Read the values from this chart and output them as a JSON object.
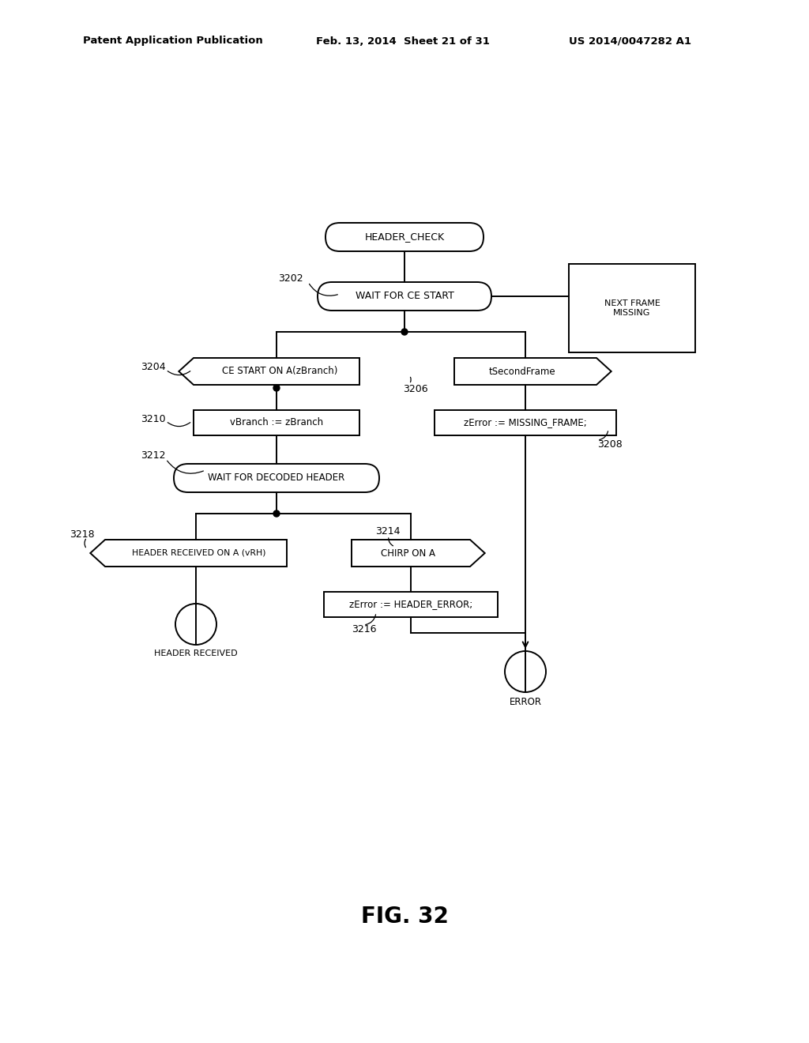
{
  "bg_color": "#ffffff",
  "header_line1": "Patent Application Publication",
  "header_line2": "Feb. 13, 2014  Sheet 21 of 31",
  "header_line3": "US 2014/0047282 A1",
  "fig_label": "FIG. 32",
  "fig_fontsize": 20,
  "header_fontsize": 9.5
}
